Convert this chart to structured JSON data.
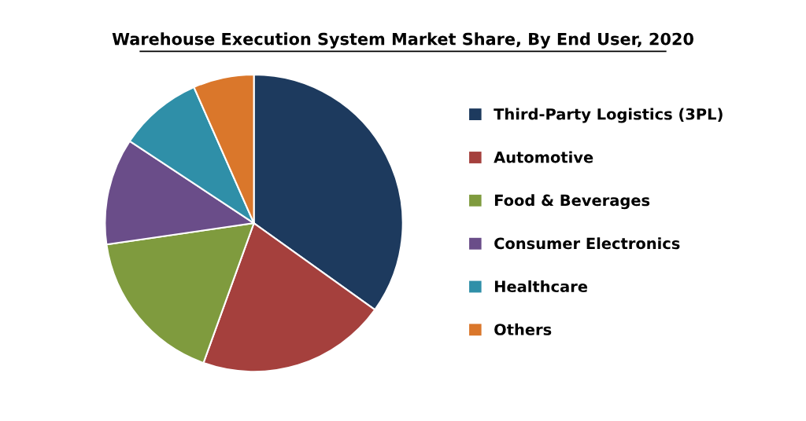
{
  "chart_data": {
    "type": "pie",
    "title": "Warehouse Execution System Market Share, By End User, 2020",
    "categories": [
      "Third-Party Logistics (3PL)",
      "Automotive",
      "Food & Beverages",
      "Consumer Electronics",
      "Healthcare",
      "Others"
    ],
    "values": [
      34.9,
      20.6,
      17.2,
      11.6,
      9.1,
      6.6
    ],
    "colors": [
      "#1d3a5e",
      "#a5403d",
      "#7f9b3e",
      "#6a4d89",
      "#2f8fa8",
      "#da772b"
    ],
    "legend": "right"
  }
}
